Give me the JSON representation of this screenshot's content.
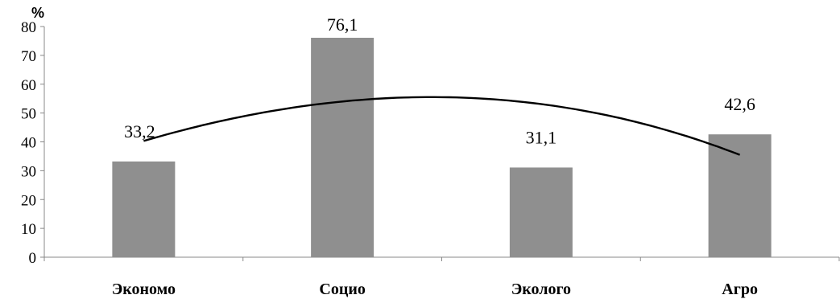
{
  "chart_data": {
    "type": "bar",
    "categories": [
      "Экономо",
      "Социо",
      "Эколого",
      "Агро"
    ],
    "values": [
      33.2,
      76.1,
      31.1,
      42.6
    ],
    "value_labels": [
      "33,2",
      "76,1",
      "31,1",
      "42,6"
    ],
    "unit": "%",
    "ylim": [
      0,
      80
    ],
    "yticks": [
      0,
      10,
      20,
      30,
      40,
      50,
      60,
      70,
      80
    ],
    "grid": false,
    "legend": "none",
    "bar_color": "#8f8f8f",
    "trendline": {
      "type": "polynomial",
      "color": "#000000",
      "points": [
        40.3,
        54.0,
        53.1,
        35.5
      ]
    }
  }
}
